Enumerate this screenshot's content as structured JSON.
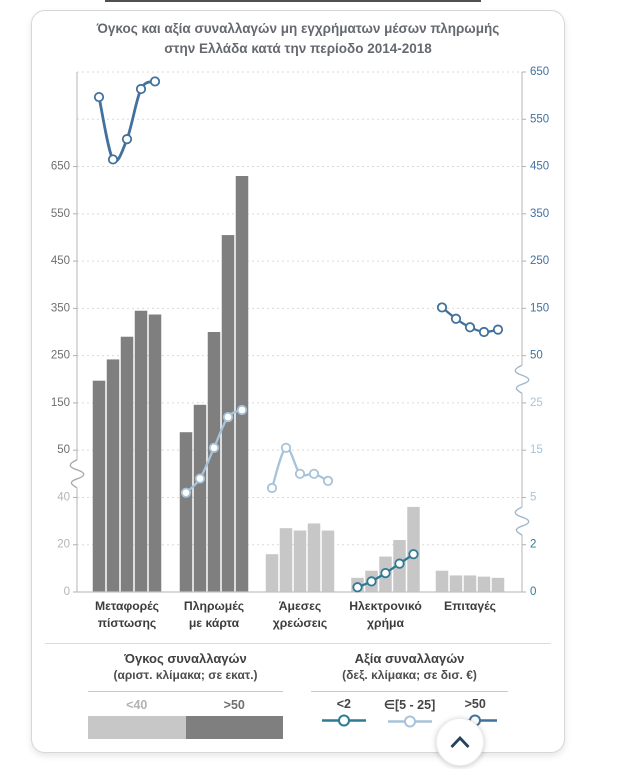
{
  "title": {
    "line1": "Όγκος και αξία συναλλαγών μη εγχρήματων  μέσων πληρωμής",
    "line2": "στην Ελλάδα κατά την περίοδο 2014-2018"
  },
  "legend_volume": {
    "heading": "Όγκος συναλλαγών",
    "subheading": "(αριστ. κλίμακα; σε εκατ.)",
    "classes": [
      {
        "label": "<40",
        "swatch_color": "#c7c7c7",
        "label_color": "#b3b3b3"
      },
      {
        "label": ">50",
        "swatch_color": "#7f7f7f",
        "label_color": "#6f6f6f"
      }
    ]
  },
  "legend_value": {
    "heading": "Αξία συναλλαγών",
    "subheading": "(δεξ. κλίμακα; σε δισ. €)",
    "classes": [
      {
        "label": "<2",
        "color": "#2d7b93"
      },
      {
        "label": "∈[5 - 25]",
        "color": "#a7c3da"
      },
      {
        "label": ">50",
        "color": "#41719c"
      }
    ]
  },
  "fab": {
    "icon": "chevron-up"
  },
  "colors": {
    "bar_dark": "#7f7f7f",
    "bar_light": "#c7c7c7",
    "line_dark_teal": "#2d7b93",
    "line_light_blue": "#a7c3da",
    "line_steel_blue": "#41719c",
    "axis_line": "#c2c2c2",
    "gridline": "#d9d9d9",
    "left_label_dark": "#6f6f6f",
    "left_label_light": "#b5b5b5",
    "category_label": "#3c3c3c"
  },
  "chart_data": {
    "type": "combo-bar-line",
    "title": "Όγκος και αξία συναλλαγών μη εγχρήματων μέσων πληρωμής στην Ελλάδα κατά την περίοδο 2014-2018",
    "years": [
      2014,
      2015,
      2016,
      2017,
      2018
    ],
    "categories": [
      "Μεταφορές πίστωσης",
      "Πληρωμές με κάρτα",
      "Άμεσες χρεώσεις",
      "Ηλεκτρονικό χρήμα",
      "Επιταγές"
    ],
    "category_label_lines": [
      [
        "Μεταφορές",
        "πίστωσης"
      ],
      [
        "Πληρωμές",
        "με κάρτα"
      ],
      [
        "Άμεσες",
        "χρεώσεις"
      ],
      [
        "Ηλεκτρονικό",
        "χρήμα"
      ],
      [
        "Επιταγές"
      ]
    ],
    "bar_series_volume_millions": [
      {
        "category": "Μεταφορές πίστωσης",
        "volume_class": ">50",
        "values": [
          197,
          242,
          290,
          345,
          337
        ]
      },
      {
        "category": "Πληρωμές με κάρτα",
        "volume_class": ">50",
        "values": [
          88,
          146,
          300,
          505,
          630
        ]
      },
      {
        "category": "Άμεσες χρεώσεις",
        "volume_class": "<40",
        "values": [
          16,
          27,
          26,
          29,
          26
        ]
      },
      {
        "category": "Ηλεκτρονικό χρήμα",
        "volume_class": "<40",
        "values": [
          6,
          9,
          15,
          22,
          36
        ]
      },
      {
        "category": "Επιταγές",
        "volume_class": "<40",
        "values": [
          9,
          7,
          7,
          6.5,
          6
        ]
      }
    ],
    "line_series_value_bn_eur": [
      {
        "category": "Μεταφορές πίστωσης",
        "value_class": ">50",
        "values": [
          597,
          465,
          508,
          614,
          630
        ]
      },
      {
        "category": "Πληρωμές με κάρτα",
        "value_class": "∈[5 - 25]",
        "values": [
          6,
          9,
          15.5,
          22,
          23.5
        ]
      },
      {
        "category": "Άμεσες χρεώσεις",
        "value_class": "∈[5 - 25]",
        "values": [
          7,
          15.5,
          10,
          10,
          8.5
        ]
      },
      {
        "category": "Ηλεκτρονικό χρήμα",
        "value_class": "<2",
        "values": [
          0.2,
          0.45,
          0.8,
          1.2,
          1.6
        ]
      },
      {
        "category": "Επιταγές",
        "value_class": ">50",
        "values": [
          152,
          128,
          110,
          100,
          105
        ]
      }
    ],
    "left_axis": {
      "unit": "εκατ.",
      "ticks": [
        650,
        550,
        450,
        350,
        250,
        150,
        50,
        40,
        20,
        0
      ],
      "break_between": [
        [
          50,
          40
        ]
      ]
    },
    "right_axis": {
      "unit": "δισ. €",
      "ticks": [
        650,
        550,
        450,
        350,
        250,
        150,
        50,
        25,
        15,
        5,
        2,
        0
      ],
      "break_between": [
        [
          50,
          25
        ],
        [
          5,
          2
        ]
      ]
    },
    "grid": "dashed-horizontal",
    "legend_position": "bottom"
  }
}
